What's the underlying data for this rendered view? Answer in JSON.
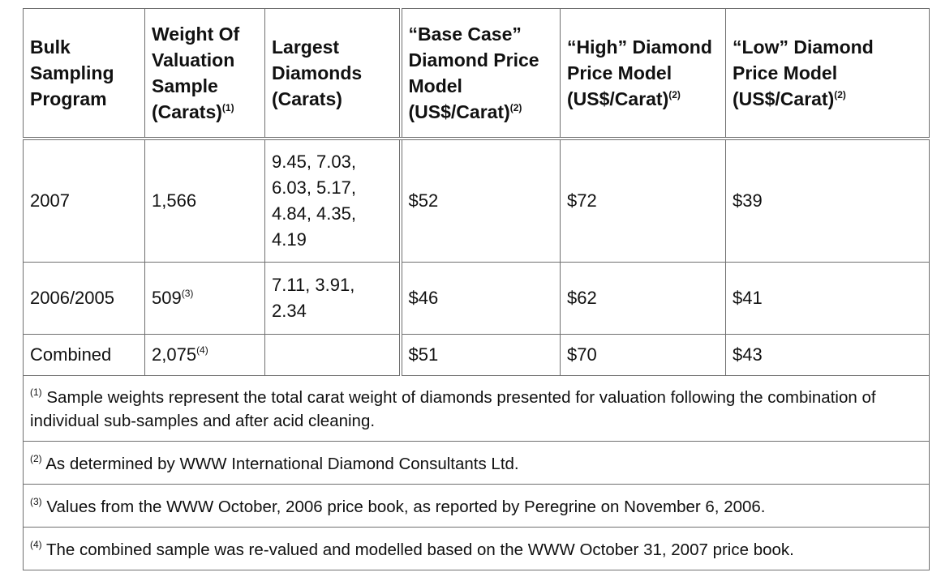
{
  "headers": [
    {
      "text": "Bulk Sampling Program",
      "sup": ""
    },
    {
      "text": "Weight Of Valuation Sample (Carats)",
      "sup": "(1)"
    },
    {
      "text": "Largest Diamonds (Carats)",
      "sup": ""
    },
    {
      "text": "“Base Case” Diamond Price Model (US$/Carat)",
      "sup": "(2)"
    },
    {
      "text": "“High” Diamond Price Model (US$/Carat)",
      "sup": "(2)"
    },
    {
      "text": "“Low” Diamond Price Model (US$/Carat)",
      "sup": "(2)"
    }
  ],
  "rows": [
    {
      "program": "2007",
      "weight": "1,566",
      "weight_sup": "",
      "largest": "9.45, 7.03, 6.03, 5.17, 4.84, 4.35, 4.19",
      "base": "$52",
      "high": "$72",
      "low": "$39"
    },
    {
      "program": "2006/2005",
      "weight": "509",
      "weight_sup": "(3)",
      "largest": "7.11, 3.91, 2.34",
      "base": "$46",
      "high": "$62",
      "low": "$41"
    },
    {
      "program": "Combined",
      "weight": "2,075",
      "weight_sup": "(4)",
      "largest": "",
      "base": "$51",
      "high": "$70",
      "low": "$43"
    }
  ],
  "notes": [
    {
      "sup": "(1)",
      "text": "Sample weights represent the total carat weight of diamonds presented for valuation following the combination of individual sub-samples and after acid cleaning."
    },
    {
      "sup": "(2)",
      "text": "As determined by WWW International Diamond Consultants Ltd."
    },
    {
      "sup": "(3)",
      "text": "Values from the WWW October, 2006 price book, as reported by Peregrine on November 6, 2006."
    },
    {
      "sup": "(4)",
      "text": "The combined sample was re-valued and modelled based on the WWW October 31, 2007 price book."
    }
  ]
}
